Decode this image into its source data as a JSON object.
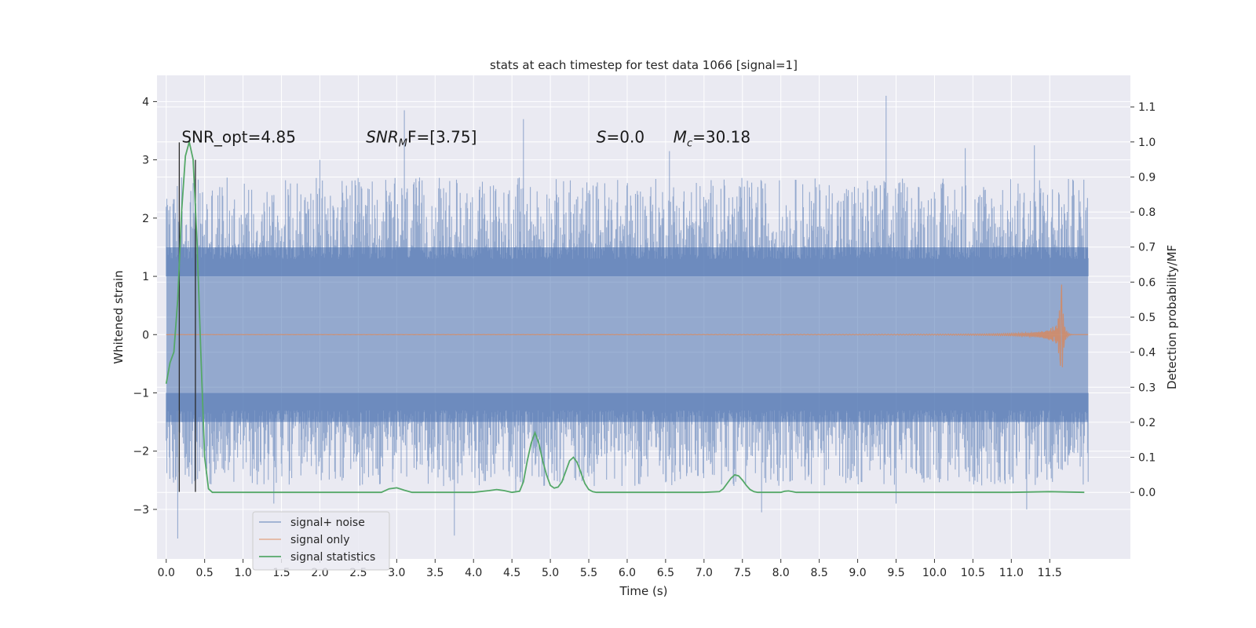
{
  "chart_data": {
    "type": "line",
    "title": "stats at each timestep for test data 1066 [signal=1]",
    "xlabel": "Time (s)",
    "ylabel": "Whitened strain",
    "ylabel_right": "Detection probability/MF",
    "xlim": [
      -0.12,
      12.55
    ],
    "ylim": [
      -3.85,
      4.45
    ],
    "ylim_right": [
      -0.19,
      1.19
    ],
    "x_ticks": [
      0.0,
      0.5,
      1.0,
      1.5,
      2.0,
      2.5,
      3.0,
      3.5,
      4.0,
      4.5,
      5.0,
      5.5,
      6.0,
      6.5,
      7.0,
      7.5,
      8.0,
      8.5,
      9.0,
      9.5,
      10.0,
      10.5,
      11.0,
      11.5
    ],
    "x_tick_labels": [
      "0.0",
      "0.5",
      "1.0",
      "1.5",
      "2.0",
      "2.5",
      "3.0",
      "3.5",
      "4.0",
      "4.5",
      "5.0",
      "5.5",
      "6.0",
      "6.5",
      "7.0",
      "7.5",
      "8.0",
      "8.5",
      "9.0",
      "9.5",
      "10.0",
      "10.5",
      "11.0",
      "11.5"
    ],
    "y_ticks": [
      -3,
      -2,
      -1,
      0,
      1,
      2,
      3,
      4
    ],
    "y_tick_labels": [
      "−3",
      "−2",
      "−1",
      "0",
      "1",
      "2",
      "3",
      "4"
    ],
    "y_right_ticks": [
      0.0,
      0.1,
      0.2,
      0.3,
      0.4,
      0.5,
      0.6,
      0.7,
      0.8,
      0.9,
      1.0,
      1.1
    ],
    "y_right_tick_labels": [
      "0.0",
      "0.1",
      "0.2",
      "0.3",
      "0.4",
      "0.5",
      "0.6",
      "0.7",
      "0.8",
      "0.9",
      "1.0",
      "1.1"
    ],
    "grid": true,
    "legend_position": "lower-left",
    "series": [
      {
        "name": "signal+ noise",
        "color": "#4c72b0",
        "axis": "left",
        "t_range": [
          0.0,
          12.0
        ],
        "band": [
          -1.5,
          1.5
        ],
        "peaks_high": [
          [
            0.05,
            2.2
          ],
          [
            0.2,
            2.7
          ],
          [
            0.35,
            2.6
          ],
          [
            2.0,
            3.0
          ],
          [
            3.1,
            3.85
          ],
          [
            4.65,
            3.7
          ],
          [
            6.55,
            3.15
          ],
          [
            9.37,
            4.1
          ],
          [
            10.4,
            3.2
          ],
          [
            11.3,
            3.25
          ]
        ],
        "peaks_low": [
          [
            0.15,
            -3.5
          ],
          [
            1.4,
            -2.9
          ],
          [
            3.75,
            -3.45
          ],
          [
            4.55,
            -2.7
          ],
          [
            7.75,
            -3.05
          ],
          [
            9.5,
            -2.9
          ],
          [
            11.2,
            -3.0
          ]
        ]
      },
      {
        "name": "signal only",
        "color": "#dd8452",
        "axis": "left",
        "t_range": [
          0.0,
          12.0
        ],
        "chirp_peak_time": 11.65,
        "chirp_peak_amplitude": 1.05
      },
      {
        "name": "signal statistics",
        "color": "#55a868",
        "axis": "right",
        "x": [
          0.0,
          0.05,
          0.1,
          0.15,
          0.2,
          0.25,
          0.3,
          0.35,
          0.4,
          0.45,
          0.5,
          0.55,
          0.6,
          0.7,
          1.0,
          1.5,
          2.0,
          2.5,
          2.8,
          2.9,
          3.0,
          3.1,
          3.2,
          3.4,
          3.6,
          4.0,
          4.2,
          4.3,
          4.4,
          4.5,
          4.6,
          4.65,
          4.7,
          4.75,
          4.8,
          4.85,
          4.9,
          4.95,
          5.0,
          5.05,
          5.1,
          5.15,
          5.2,
          5.25,
          5.3,
          5.35,
          5.4,
          5.45,
          5.5,
          5.55,
          5.6,
          5.7,
          6.0,
          6.3,
          6.6,
          7.0,
          7.2,
          7.25,
          7.3,
          7.35,
          7.4,
          7.45,
          7.5,
          7.55,
          7.6,
          7.65,
          7.7,
          7.8,
          8.0,
          8.05,
          8.1,
          8.15,
          8.2,
          8.5,
          9.0,
          9.5,
          10.0,
          10.5,
          11.0,
          11.5,
          11.95
        ],
        "y": [
          0.31,
          0.37,
          0.4,
          0.55,
          0.8,
          0.96,
          1.0,
          0.95,
          0.72,
          0.4,
          0.1,
          0.01,
          0.0,
          0.0,
          0.0,
          0.0,
          0.0,
          0.0,
          0.0,
          0.01,
          0.013,
          0.006,
          0.0,
          0.0,
          0.0,
          0.0,
          0.005,
          0.008,
          0.005,
          0.0,
          0.003,
          0.03,
          0.09,
          0.14,
          0.17,
          0.14,
          0.09,
          0.05,
          0.02,
          0.012,
          0.015,
          0.03,
          0.06,
          0.09,
          0.1,
          0.085,
          0.055,
          0.025,
          0.008,
          0.002,
          0.0,
          0.0,
          0.0,
          0.0,
          0.0,
          0.0,
          0.002,
          0.01,
          0.025,
          0.04,
          0.05,
          0.047,
          0.035,
          0.02,
          0.008,
          0.002,
          0.0,
          0.0,
          0.0,
          0.003,
          0.004,
          0.002,
          0.0,
          0.0,
          0.0,
          0.0,
          0.0,
          0.0,
          0.0,
          0.002,
          0.0
        ]
      }
    ],
    "vertical_lines": [
      {
        "x": 0.17,
        "y_top": 3.3,
        "y_bottom": -2.7
      },
      {
        "x": 0.38,
        "y_top": 3.0,
        "y_bottom": -2.7
      }
    ],
    "annotations": [
      {
        "text": "SNR_opt=4.85",
        "x": 0.2,
        "y": 3.3
      },
      {
        "text_parts": [
          "SNR",
          "M",
          "F=[3.75]"
        ],
        "x": 2.6,
        "y": 3.3
      },
      {
        "text_parts": [
          "S",
          "=0.0"
        ],
        "x": 5.6,
        "y": 3.3
      },
      {
        "text_parts": [
          "M",
          "c",
          "=30.18"
        ],
        "x": 6.6,
        "y": 3.3
      }
    ]
  }
}
